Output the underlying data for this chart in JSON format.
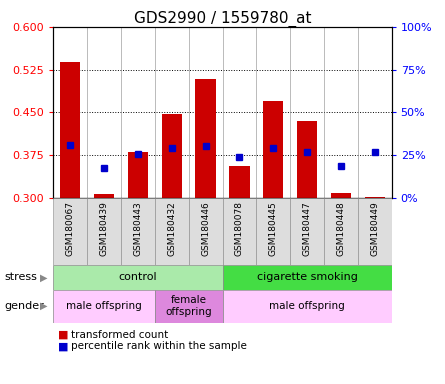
{
  "title": "GDS2990 / 1559780_at",
  "samples": [
    "GSM180067",
    "GSM180439",
    "GSM180443",
    "GSM180432",
    "GSM180446",
    "GSM180078",
    "GSM180445",
    "GSM180447",
    "GSM180448",
    "GSM180449"
  ],
  "red_values": [
    0.538,
    0.307,
    0.38,
    0.447,
    0.508,
    0.355,
    0.47,
    0.435,
    0.308,
    0.302
  ],
  "blue_values": [
    0.393,
    0.352,
    0.376,
    0.387,
    0.39,
    0.372,
    0.387,
    0.381,
    0.355,
    0.381
  ],
  "ylim": [
    0.3,
    0.6
  ],
  "yticks": [
    0.3,
    0.375,
    0.45,
    0.525,
    0.6
  ],
  "y2ticks": [
    0,
    25,
    50,
    75,
    100
  ],
  "y2labels": [
    "0%",
    "25%",
    "50%",
    "75%",
    "100%"
  ],
  "bar_bottom": 0.3,
  "bar_color": "#cc0000",
  "dot_color": "#0000cc",
  "stress_groups": [
    {
      "label": "control",
      "start": 0,
      "end": 5,
      "color": "#aaeaaa"
    },
    {
      "label": "cigarette smoking",
      "start": 5,
      "end": 10,
      "color": "#44dd44"
    }
  ],
  "gender_groups": [
    {
      "label": "male offspring",
      "start": 0,
      "end": 3,
      "color": "#ffccff"
    },
    {
      "label": "female\noffspring",
      "start": 3,
      "end": 5,
      "color": "#dd88dd"
    },
    {
      "label": "male offspring",
      "start": 5,
      "end": 10,
      "color": "#ffccff"
    }
  ],
  "title_fontsize": 11,
  "tick_fontsize": 8,
  "sample_fontsize": 6.5
}
